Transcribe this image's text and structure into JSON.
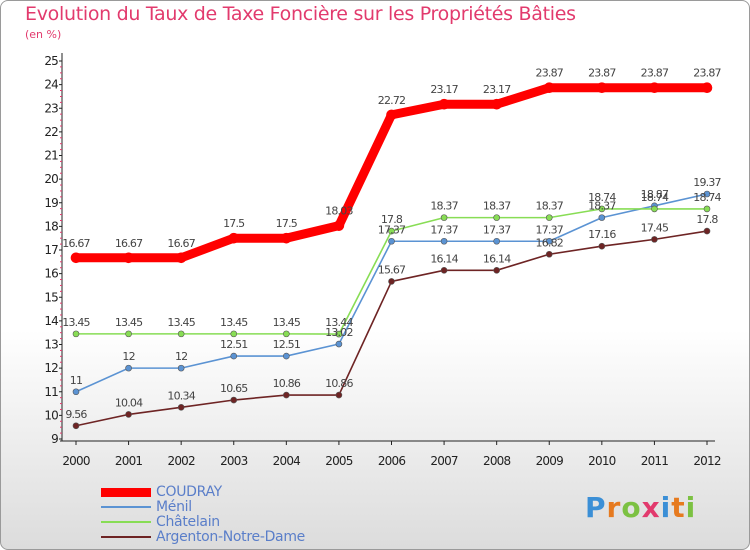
{
  "chart_data": {
    "type": "line",
    "title": "Evolution du Taux de Taxe Foncière sur les Propriétés Bâties",
    "subtitle": "(en %)",
    "xlabel": "",
    "ylabel": "",
    "x": [
      "2000",
      "2001",
      "2002",
      "2003",
      "2004",
      "2005",
      "2006",
      "2007",
      "2008",
      "2009",
      "2010",
      "2011",
      "2012"
    ],
    "ylim": [
      9,
      25
    ],
    "yticks": [
      "9",
      "10",
      "11",
      "12",
      "13",
      "14",
      "15",
      "16",
      "17",
      "18",
      "19",
      "20",
      "21",
      "22",
      "23",
      "24",
      "25"
    ],
    "grid": false,
    "legend_position": "bottom-left",
    "series": [
      {
        "name": "COUDRAY",
        "color": "#ff0000",
        "values": [
          16.67,
          16.67,
          16.67,
          17.5,
          17.5,
          18.03,
          22.72,
          23.17,
          23.17,
          23.87,
          23.87,
          23.87,
          23.87
        ],
        "labels": [
          "16.67",
          "16.67",
          "16.67",
          "17.5",
          "17.5",
          "18.03",
          "22.72",
          "23.17",
          "23.17",
          "23.87",
          "23.87",
          "23.87",
          "23.87"
        ]
      },
      {
        "name": "Ménil",
        "color": "#5b93d3",
        "values": [
          11,
          12,
          12,
          12.51,
          12.51,
          13.02,
          17.37,
          17.37,
          17.37,
          17.37,
          18.37,
          18.87,
          19.37
        ],
        "labels": [
          "11",
          "12",
          "12",
          "12.51",
          "12.51",
          "13.02",
          "17.37",
          "17.37",
          "17.37",
          "17.37",
          "18.37",
          "18.87",
          "19.37"
        ]
      },
      {
        "name": "Châtelain",
        "color": "#88dd55",
        "values": [
          13.45,
          13.45,
          13.45,
          13.45,
          13.45,
          13.44,
          17.8,
          18.37,
          18.37,
          18.37,
          18.74,
          18.74,
          18.74
        ],
        "labels": [
          "13.45",
          "13.45",
          "13.45",
          "13.45",
          "13.45",
          "13.44",
          "17.8",
          "18.37",
          "18.37",
          "18.37",
          "18.74",
          "18.74",
          "18.74"
        ]
      },
      {
        "name": "Argenton-Notre-Dame",
        "color": "#6e2424",
        "values": [
          9.56,
          10.04,
          10.34,
          10.65,
          10.86,
          10.86,
          15.67,
          16.14,
          16.14,
          16.82,
          17.16,
          17.45,
          17.8
        ],
        "labels": [
          "9.56",
          "10.04",
          "10.34",
          "10.65",
          "10.86",
          "10.86",
          "15.67",
          "16.14",
          "16.14",
          "16.82",
          "17.16",
          "17.45",
          "17.8"
        ]
      }
    ]
  },
  "branding": {
    "logo_letters": [
      "P",
      "r",
      "o",
      "x",
      "i",
      "t",
      "i"
    ],
    "logo_colors": [
      "#3b8fd6",
      "#e67a1f",
      "#7cc142",
      "#e23a6d",
      "#3b8fd6",
      "#e67a1f",
      "#7cc142"
    ]
  }
}
